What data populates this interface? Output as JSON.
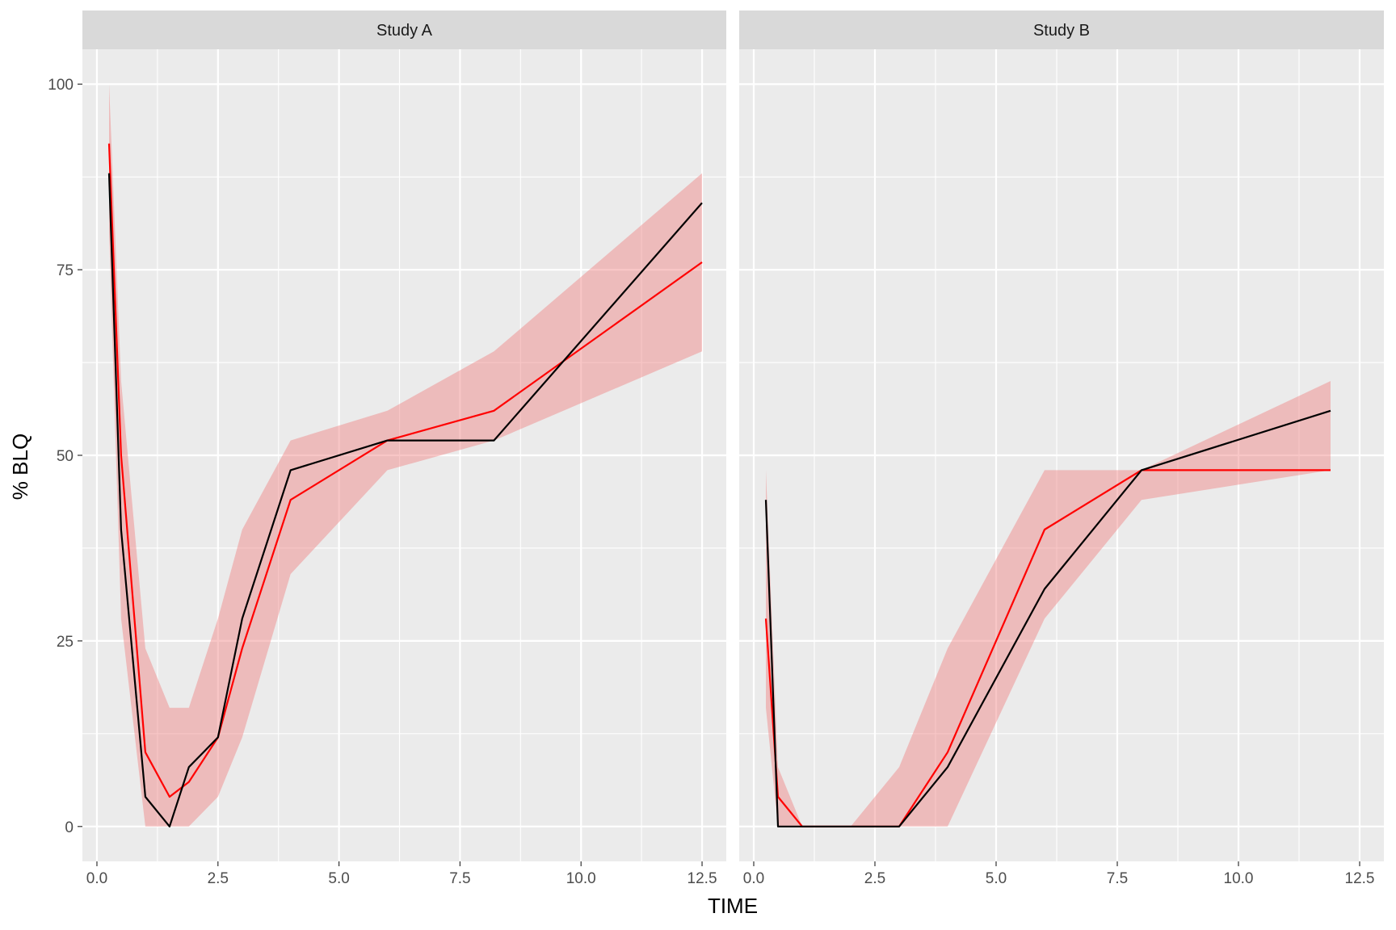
{
  "chart_data": {
    "type": "line",
    "xlabel": "TIME",
    "ylabel": "% BLQ",
    "xlim": [
      -0.3,
      13.0
    ],
    "ylim": [
      -4.7,
      104.7
    ],
    "x_ticks": [
      "0.0",
      "2.5",
      "5.0",
      "7.5",
      "10.0",
      "12.5"
    ],
    "x_tick_values": [
      0,
      2.5,
      5,
      7.5,
      10,
      12.5
    ],
    "y_ticks": [
      "0",
      "25",
      "50",
      "75",
      "100"
    ],
    "y_tick_values": [
      0,
      25,
      50,
      75,
      100
    ],
    "grid": true,
    "colors": {
      "panel_bg": "#ebebeb",
      "strip_bg": "#d9d9d9",
      "grid": "#ffffff",
      "observed": "#000000",
      "median": "#ff0000",
      "ribbon": "#f08080"
    },
    "panels": [
      {
        "strip": "Study A",
        "observed": {
          "x": [
            0.25,
            0.5,
            1.0,
            1.5,
            1.9,
            2.5,
            3.0,
            4.0,
            6.0,
            8.2,
            12.5
          ],
          "y": [
            88,
            40,
            4,
            0,
            8,
            12,
            28,
            48,
            52,
            52,
            84
          ]
        },
        "median": {
          "x": [
            0.25,
            0.5,
            1.0,
            1.5,
            1.9,
            2.5,
            3.0,
            4.0,
            6.0,
            8.2,
            12.5
          ],
          "y": [
            92,
            50,
            10,
            4,
            6,
            12,
            24,
            44,
            52,
            56,
            76
          ]
        },
        "ribbon": {
          "x": [
            0.25,
            0.5,
            1.0,
            1.5,
            1.9,
            2.5,
            3.0,
            4.0,
            6.0,
            8.2,
            12.5
          ],
          "lower": [
            80,
            28,
            0,
            0,
            0,
            4,
            12,
            34,
            48,
            52,
            64
          ],
          "upper": [
            100,
            60,
            24,
            16,
            16,
            28,
            40,
            52,
            56,
            64,
            88
          ]
        }
      },
      {
        "strip": "Study B",
        "observed": {
          "x": [
            0.25,
            0.5,
            1.0,
            3.0,
            4.0,
            6.0,
            8.0,
            11.9
          ],
          "y": [
            44,
            0,
            0,
            0,
            8,
            32,
            48,
            56
          ]
        },
        "median": {
          "x": [
            0.25,
            0.5,
            1.0,
            3.0,
            4.0,
            6.0,
            8.0,
            11.9
          ],
          "y": [
            28,
            4,
            0,
            0,
            10,
            40,
            48,
            48
          ]
        },
        "ribbon": {
          "x": [
            0.25,
            0.5,
            1.0,
            2.0,
            3.0,
            4.0,
            6.0,
            8.0,
            11.9
          ],
          "lower": [
            16,
            0,
            0,
            0,
            0,
            0,
            28,
            44,
            48
          ],
          "upper": [
            48,
            8,
            0,
            0,
            8,
            24,
            48,
            48,
            60
          ]
        }
      }
    ]
  }
}
